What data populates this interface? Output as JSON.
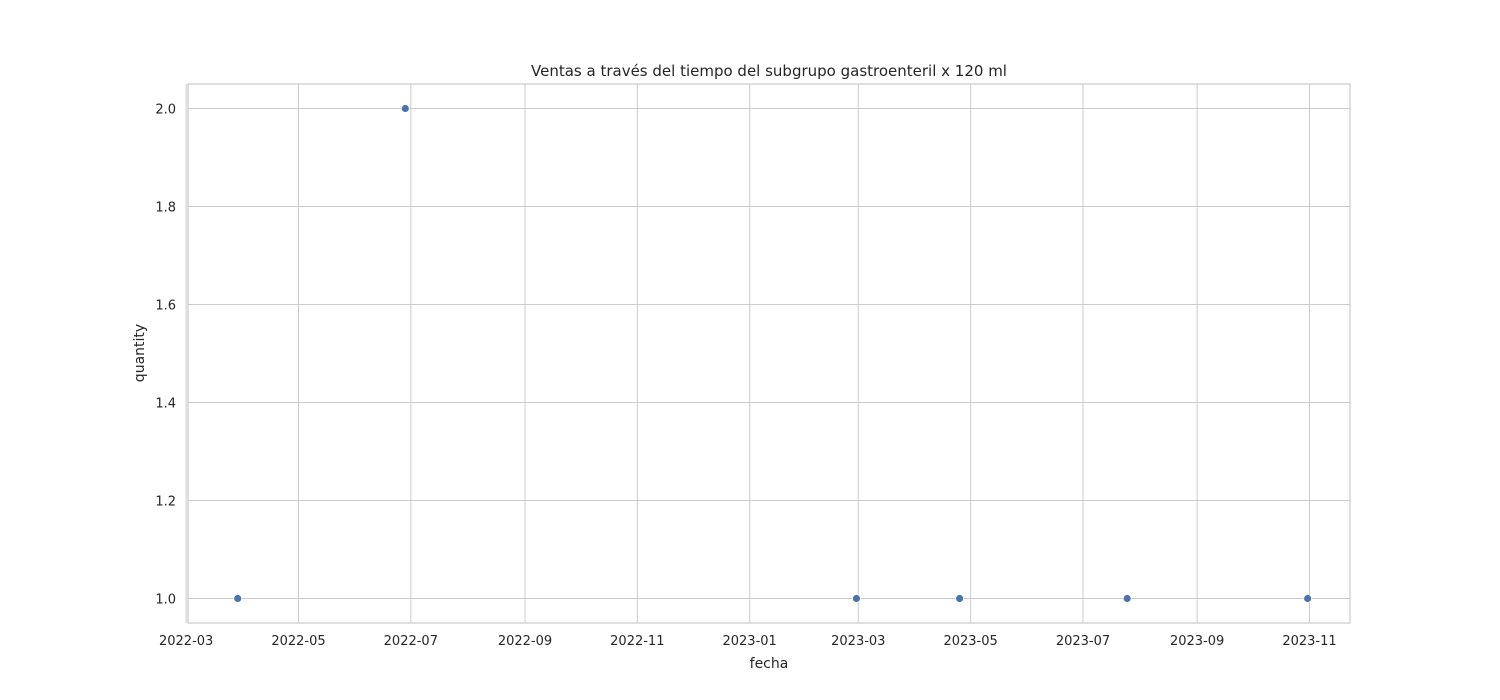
{
  "chart_data": {
    "type": "scatter",
    "title": "Ventas a través del tiempo del subgrupo gastroenteril x 120 ml",
    "xlabel": "fecha",
    "ylabel": "quantity",
    "x_type": "date",
    "xlim": [
      "2022-03-02",
      "2023-11-23"
    ],
    "ylim": [
      0.95,
      2.05
    ],
    "grid": true,
    "x_ticks": [
      "2022-03-01",
      "2022-05-01",
      "2022-07-01",
      "2022-09-01",
      "2022-11-01",
      "2023-01-01",
      "2023-03-01",
      "2023-05-01",
      "2023-07-01",
      "2023-09-01",
      "2023-11-01"
    ],
    "x_tick_labels": [
      "2022-03",
      "2022-05",
      "2022-07",
      "2022-09",
      "2022-11",
      "2023-01",
      "2023-03",
      "2023-05",
      "2023-07",
      "2023-09",
      "2023-11"
    ],
    "y_ticks": [
      1.0,
      1.2,
      1.4,
      1.6,
      1.8,
      2.0
    ],
    "y_tick_labels": [
      "1.0",
      "1.2",
      "1.4",
      "1.6",
      "1.8",
      "2.0"
    ],
    "series": [
      {
        "color": "#4c72b0",
        "points": [
          {
            "x": "2022-03-29",
            "y": 1
          },
          {
            "x": "2022-06-28",
            "y": 2
          },
          {
            "x": "2023-02-28",
            "y": 1
          },
          {
            "x": "2023-04-25",
            "y": 1
          },
          {
            "x": "2023-07-25",
            "y": 1
          },
          {
            "x": "2023-10-31",
            "y": 1
          }
        ]
      }
    ]
  }
}
